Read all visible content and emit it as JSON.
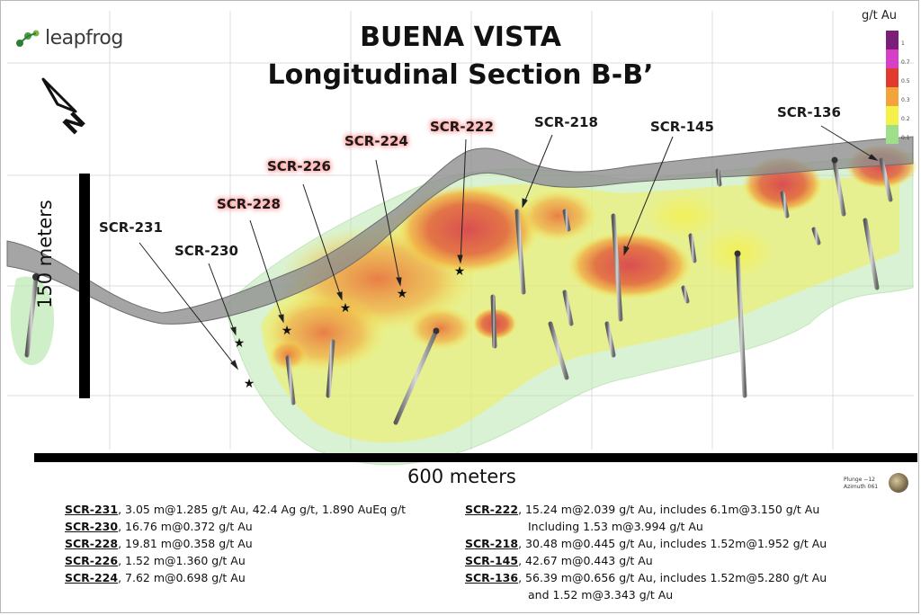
{
  "logo": {
    "text": "leapfrog"
  },
  "title": {
    "line1": "BUENA VISTA",
    "line2": "Longitudinal Section B-B’"
  },
  "compass": {
    "letter": "N"
  },
  "scale": {
    "vertical_label": "150 meters",
    "horizontal_label": "600 meters"
  },
  "legend": {
    "title": "g/t Au",
    "ticks": [
      "1",
      "0.7",
      "0.5",
      "0.3",
      "0.2",
      "0.1"
    ],
    "colors": [
      "#7b1f7a",
      "#d640c8",
      "#e23a2f",
      "#f2a33a",
      "#f5f04a",
      "#9ee08a"
    ]
  },
  "drill_holes": [
    {
      "id": "SCR-231",
      "highlight": false
    },
    {
      "id": "SCR-230",
      "highlight": false
    },
    {
      "id": "SCR-228",
      "highlight": true
    },
    {
      "id": "SCR-226",
      "highlight": true
    },
    {
      "id": "SCR-224",
      "highlight": true
    },
    {
      "id": "SCR-222",
      "highlight": true
    },
    {
      "id": "SCR-218",
      "highlight": false
    },
    {
      "id": "SCR-145",
      "highlight": false
    },
    {
      "id": "SCR-136",
      "highlight": false
    }
  ],
  "results_left": [
    {
      "id": "SCR-231",
      "text": ", 3.05 m@1.285 g/t Au, 42.4 Ag g/t, 1.890 AuEq g/t"
    },
    {
      "id": "SCR-230",
      "text": ", 16.76 m@0.372 g/t Au"
    },
    {
      "id": "SCR-228",
      "text": ", 19.81 m@0.358 g/t Au"
    },
    {
      "id": "SCR-226",
      "text": ", 1.52 m@1.360 g/t Au"
    },
    {
      "id": "SCR-224",
      "text": ", 7.62 m@0.698 g/t Au"
    }
  ],
  "results_right": [
    {
      "id": "SCR-222",
      "text": ", 15.24 m@2.039 g/t Au, includes 6.1m@3.150 g/t Au",
      "cont": "Including 1.53 m@3.994 g/t Au"
    },
    {
      "id": "SCR-218",
      "text": ", 30.48 m@0.445 g/t Au, includes 1.52m@1.952 g/t Au"
    },
    {
      "id": "SCR-145",
      "text": ", 42.67 m@0.443 g/t Au"
    },
    {
      "id": "SCR-136",
      "text": ", 56.39 m@0.656 g/t Au, includes 1.52m@5.280 g/t Au",
      "cont": "and 1.52 m@3.343 g/t Au"
    }
  ],
  "view": {
    "plunge": "Plunge −12",
    "azimuth": "Azimuth 061"
  }
}
